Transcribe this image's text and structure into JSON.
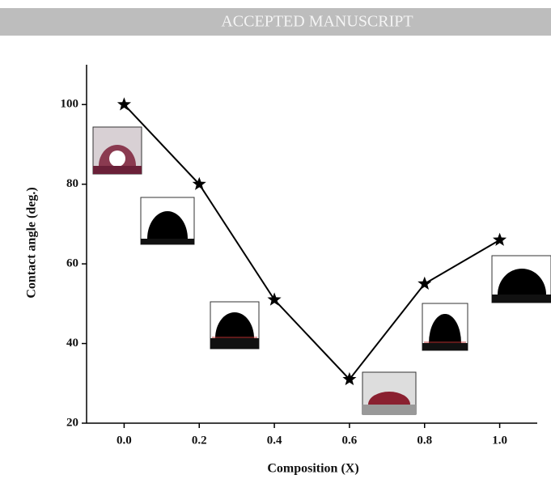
{
  "banner": "ACCEPTED MANUSCRIPT",
  "chart_data": {
    "type": "line",
    "x_label": "Composition (X)",
    "y_label": "Contact angle (deg.)",
    "x": [
      0.0,
      0.2,
      0.4,
      0.6,
      0.8,
      1.0
    ],
    "values": [
      100,
      80,
      51,
      31,
      55,
      66
    ],
    "color": "#000000",
    "marker": "star",
    "xlim": [
      -0.1,
      1.1
    ],
    "ylim": [
      20,
      110
    ],
    "xticks": [
      {
        "value": 0.0,
        "label": "0.0"
      },
      0.2,
      0.4,
      0.6,
      0.8,
      {
        "value": 1.0,
        "label": "1.0"
      }
    ],
    "yticks": [
      20,
      40,
      60,
      80,
      100
    ],
    "grid": false
  }
}
